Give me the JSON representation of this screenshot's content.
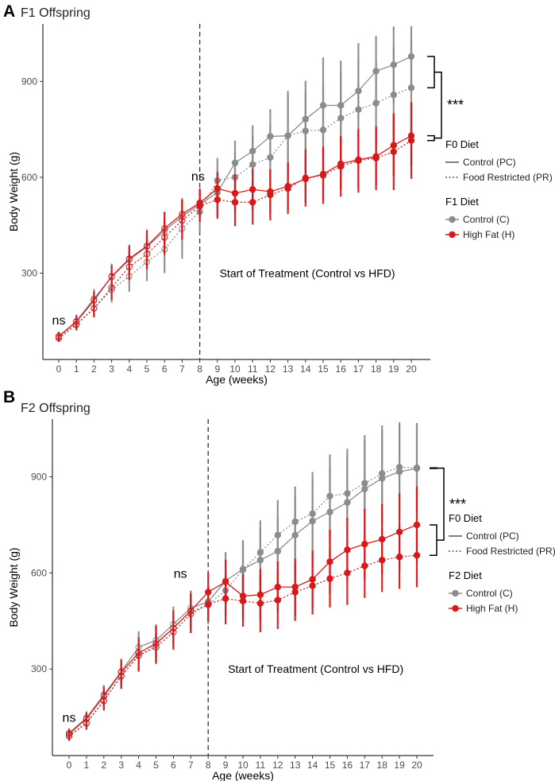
{
  "figure": {
    "colors": {
      "control": "#8c8c8c",
      "highfat": "#d7191c",
      "axis": "#000000",
      "dashed": "#333333"
    }
  },
  "chart_data": [
    {
      "type": "line",
      "panel_letter": "A",
      "title": "F1 Offspring",
      "xlabel": "Age (weeks)",
      "ylabel": "Body Weight (g)",
      "ylim": [
        30,
        1080
      ],
      "yticks": [
        300,
        600,
        900
      ],
      "categories": [
        0,
        1,
        2,
        3,
        4,
        5,
        6,
        7,
        8,
        9,
        10,
        11,
        12,
        13,
        14,
        15,
        16,
        17,
        18,
        19,
        20
      ],
      "treatment_week": 8,
      "treatment_label": "Start of Treatment (Control vs HFD)",
      "annotations": [
        {
          "text": "ns",
          "week": 0,
          "value": 140
        },
        {
          "text": "ns",
          "week": 7.9,
          "value": 590
        }
      ],
      "significance": {
        "text": "***"
      },
      "legend": {
        "f0_title": "F0 Diet",
        "f0_items": [
          "Control (PC)",
          "Food Restricted (PR)"
        ],
        "f1_title": "F1 Diet",
        "f1_items": [
          "Control (C)",
          "High Fat (H)"
        ]
      },
      "series": [
        {
          "name": "PC-C",
          "diet": "control",
          "line": "solid",
          "values": [
            103,
            150,
            220,
            288,
            342,
            382,
            432,
            478,
            515,
            552,
            645,
            682,
            728,
            730,
            782,
            825,
            825,
            870,
            932,
            952,
            978
          ],
          "errors": [
            14,
            20,
            30,
            42,
            48,
            55,
            58,
            55,
            40,
            70,
            70,
            80,
            85,
            140,
            120,
            150,
            140,
            150,
            110,
            120,
            95
          ]
        },
        {
          "name": "PR-C",
          "diet": "control",
          "line": "dotted",
          "values": [
            97,
            138,
            190,
            248,
            290,
            335,
            375,
            440,
            492,
            590,
            600,
            640,
            662,
            730,
            745,
            748,
            785,
            812,
            832,
            858,
            880
          ],
          "errors": [
            12,
            18,
            28,
            40,
            48,
            60,
            75,
            95,
            65,
            70,
            80,
            90,
            100,
            130,
            120,
            140,
            140,
            160,
            130,
            150,
            150
          ]
        },
        {
          "name": "PC-H",
          "diet": "highfat",
          "line": "solid",
          "values": [
            102,
            148,
            215,
            290,
            345,
            385,
            440,
            485,
            520,
            565,
            550,
            562,
            555,
            572,
            595,
            610,
            642,
            655,
            665,
            700,
            730
          ],
          "errors": [
            14,
            20,
            28,
            35,
            40,
            48,
            52,
            45,
            45,
            50,
            60,
            65,
            70,
            75,
            75,
            80,
            80,
            90,
            90,
            95,
            95
          ]
        },
        {
          "name": "PR-H",
          "diet": "highfat",
          "line": "dotted",
          "values": [
            97,
            140,
            190,
            255,
            320,
            360,
            412,
            465,
            510,
            530,
            522,
            522,
            545,
            565,
            598,
            606,
            634,
            652,
            660,
            680,
            715
          ],
          "errors": [
            12,
            18,
            28,
            38,
            42,
            48,
            55,
            60,
            50,
            60,
            75,
            70,
            80,
            80,
            90,
            90,
            95,
            100,
            100,
            120,
            120
          ]
        }
      ]
    },
    {
      "type": "line",
      "panel_letter": "B",
      "title": "F2 Offspring",
      "xlabel": "Age (weeks)",
      "ylabel": "Body Weight (g)",
      "ylim": [
        30,
        1080
      ],
      "yticks": [
        300,
        600,
        900
      ],
      "categories": [
        0,
        1,
        2,
        3,
        4,
        5,
        6,
        7,
        8,
        9,
        10,
        11,
        12,
        13,
        14,
        15,
        16,
        17,
        18,
        19,
        20
      ],
      "treatment_week": 8,
      "treatment_label": "Start of Treatment (Control vs HFD)",
      "annotations": [
        {
          "text": "ns",
          "week": 0,
          "value": 135
        },
        {
          "text": "ns",
          "week": 6.4,
          "value": 585
        }
      ],
      "significance": {
        "text": "***"
      },
      "legend": {
        "f0_title": "F0 Diet",
        "f0_items": [
          "Control (PC)",
          "Food Restricted (PR)"
        ],
        "f1_title": "F2 Diet",
        "f1_items": [
          "Control (C)",
          "High Fat (H)"
        ]
      },
      "series": [
        {
          "name": "PC-C",
          "diet": "control",
          "line": "solid",
          "values": [
            100,
            148,
            220,
            292,
            368,
            390,
            440,
            490,
            510,
            575,
            612,
            640,
            668,
            718,
            762,
            790,
            820,
            862,
            895,
            916,
            926
          ],
          "errors": [
            15,
            20,
            30,
            40,
            50,
            50,
            55,
            55,
            50,
            90,
            90,
            100,
            110,
            120,
            130,
            140,
            140,
            150,
            150,
            150,
            140
          ]
        },
        {
          "name": "PR-C",
          "diet": "control",
          "line": "dotted",
          "values": [
            90,
            130,
            200,
            280,
            342,
            375,
            428,
            480,
            500,
            545,
            610,
            664,
            718,
            760,
            785,
            840,
            848,
            880,
            910,
            930,
            928
          ],
          "errors": [
            15,
            20,
            30,
            40,
            50,
            60,
            60,
            65,
            60,
            80,
            90,
            100,
            110,
            110,
            130,
            130,
            140,
            150,
            150,
            140,
            140
          ]
        },
        {
          "name": "PC-H",
          "diet": "highfat",
          "line": "solid",
          "values": [
            98,
            145,
            215,
            290,
            350,
            380,
            428,
            482,
            540,
            572,
            528,
            532,
            556,
            556,
            580,
            635,
            672,
            690,
            705,
            728,
            750
          ],
          "errors": [
            15,
            20,
            30,
            40,
            50,
            55,
            55,
            55,
            60,
            70,
            70,
            80,
            80,
            90,
            90,
            100,
            100,
            110,
            110,
            120,
            120
          ]
        },
        {
          "name": "PR-H",
          "diet": "highfat",
          "line": "dotted",
          "values": [
            92,
            132,
            202,
            278,
            342,
            368,
            415,
            472,
            502,
            520,
            512,
            505,
            515,
            540,
            560,
            582,
            600,
            622,
            640,
            650,
            655
          ],
          "errors": [
            15,
            20,
            30,
            40,
            50,
            50,
            55,
            60,
            55,
            80,
            80,
            90,
            90,
            90,
            90,
            90,
            100,
            100,
            100,
            100,
            100
          ]
        }
      ]
    }
  ]
}
